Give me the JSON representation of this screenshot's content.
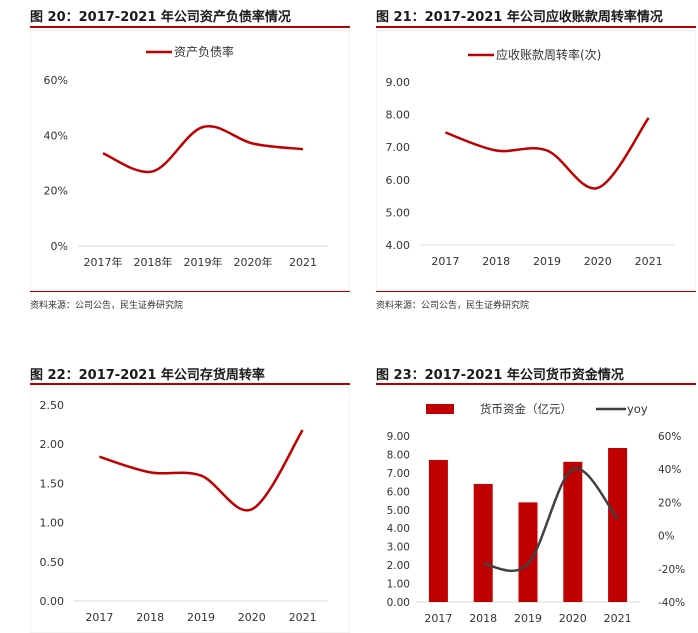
{
  "panels": [
    {
      "title": "图 20：2017-2021 年公司资产负债率情况",
      "source": "资料来源：公司公告，民生证券研究院"
    },
    {
      "title": "图 21：2017-2021 年公司应收账款周转率情况",
      "source": "资料来源：公司公告，民生证券研究院"
    },
    {
      "title": "图 22：2017-2021 年公司存货周转率",
      "source": ""
    },
    {
      "title": "图 23：2017-2021 年公司货币资金情况",
      "source": ""
    }
  ],
  "colors": {
    "red": "#c00000",
    "dark": "#404040",
    "axis": "#d9d9d9"
  },
  "chart_data": [
    {
      "type": "line",
      "categories": [
        "2017年",
        "2018年",
        "2019年",
        "2020年",
        "2021"
      ],
      "series": [
        {
          "name": "资产负债率",
          "values": [
            33.5,
            27,
            43,
            37,
            35
          ]
        }
      ],
      "yticks": [
        "0%",
        "20%",
        "40%",
        "60%"
      ],
      "ylim": [
        0,
        60
      ],
      "legend": "top"
    },
    {
      "type": "line",
      "categories": [
        "2017",
        "2018",
        "2019",
        "2020",
        "2021"
      ],
      "series": [
        {
          "name": "应收账款周转率(次)",
          "values": [
            7.45,
            6.9,
            6.9,
            5.75,
            7.9
          ]
        }
      ],
      "yticks": [
        "4.00",
        "5.00",
        "6.00",
        "7.00",
        "8.00",
        "9.00"
      ],
      "ylim": [
        4,
        9
      ],
      "legend": "top"
    },
    {
      "type": "line",
      "categories": [
        "2017",
        "2018",
        "2019",
        "2020",
        "2021"
      ],
      "series": [
        {
          "name": "",
          "values": [
            1.84,
            1.64,
            1.6,
            1.17,
            2.18
          ]
        }
      ],
      "yticks": [
        "0.00",
        "0.50",
        "1.00",
        "1.50",
        "2.00",
        "2.50"
      ],
      "ylim": [
        0,
        2.5
      ],
      "legend": "none"
    },
    {
      "type": "bar",
      "categories": [
        "2017",
        "2018",
        "2019",
        "2020",
        "2021"
      ],
      "series": [
        {
          "name": "货币资金（亿元）",
          "type": "bar",
          "axis": "left",
          "values": [
            7.7,
            6.4,
            5.4,
            7.6,
            8.35
          ]
        },
        {
          "name": "yoy",
          "type": "line",
          "axis": "right",
          "values": [
            null,
            -17,
            -17,
            40,
            10
          ]
        }
      ],
      "yticks": [
        "0.00",
        "1.00",
        "2.00",
        "3.00",
        "4.00",
        "5.00",
        "6.00",
        "7.00",
        "8.00",
        "9.00"
      ],
      "y2ticks": [
        "-40%",
        "-20%",
        "0%",
        "20%",
        "40%",
        "60%"
      ],
      "ylim": [
        0,
        9
      ],
      "y2lim": [
        -40,
        60
      ],
      "legend": "top"
    }
  ]
}
